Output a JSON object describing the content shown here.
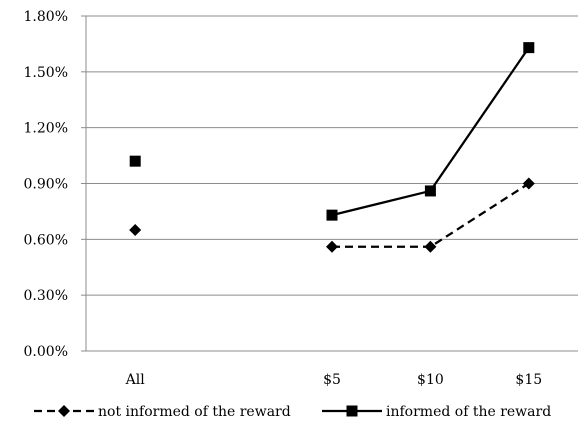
{
  "chart_data": {
    "type": "line",
    "title": "",
    "xlabel": "",
    "ylabel": "",
    "categories": [
      "All",
      "",
      "$5",
      "$10",
      "$15"
    ],
    "ylim": [
      0.0,
      1.8
    ],
    "yticks": [
      "0.00%",
      "0.30%",
      "0.60%",
      "0.90%",
      "1.20%",
      "1.50%",
      "1.80%"
    ],
    "ytick_values": [
      0.0,
      0.3,
      0.6,
      0.9,
      1.2,
      1.5,
      1.8
    ],
    "grid": "horizontal",
    "legend_position": "bottom",
    "series": [
      {
        "name": "not informed of the reward",
        "marker": "diamond",
        "line_style": "dashed",
        "color": "#000000",
        "values": [
          0.65,
          null,
          0.56,
          0.56,
          0.9
        ]
      },
      {
        "name": "informed of the reward",
        "marker": "square",
        "line_style": "solid",
        "color": "#000000",
        "values": [
          1.02,
          null,
          0.73,
          0.86,
          1.63
        ]
      }
    ]
  }
}
